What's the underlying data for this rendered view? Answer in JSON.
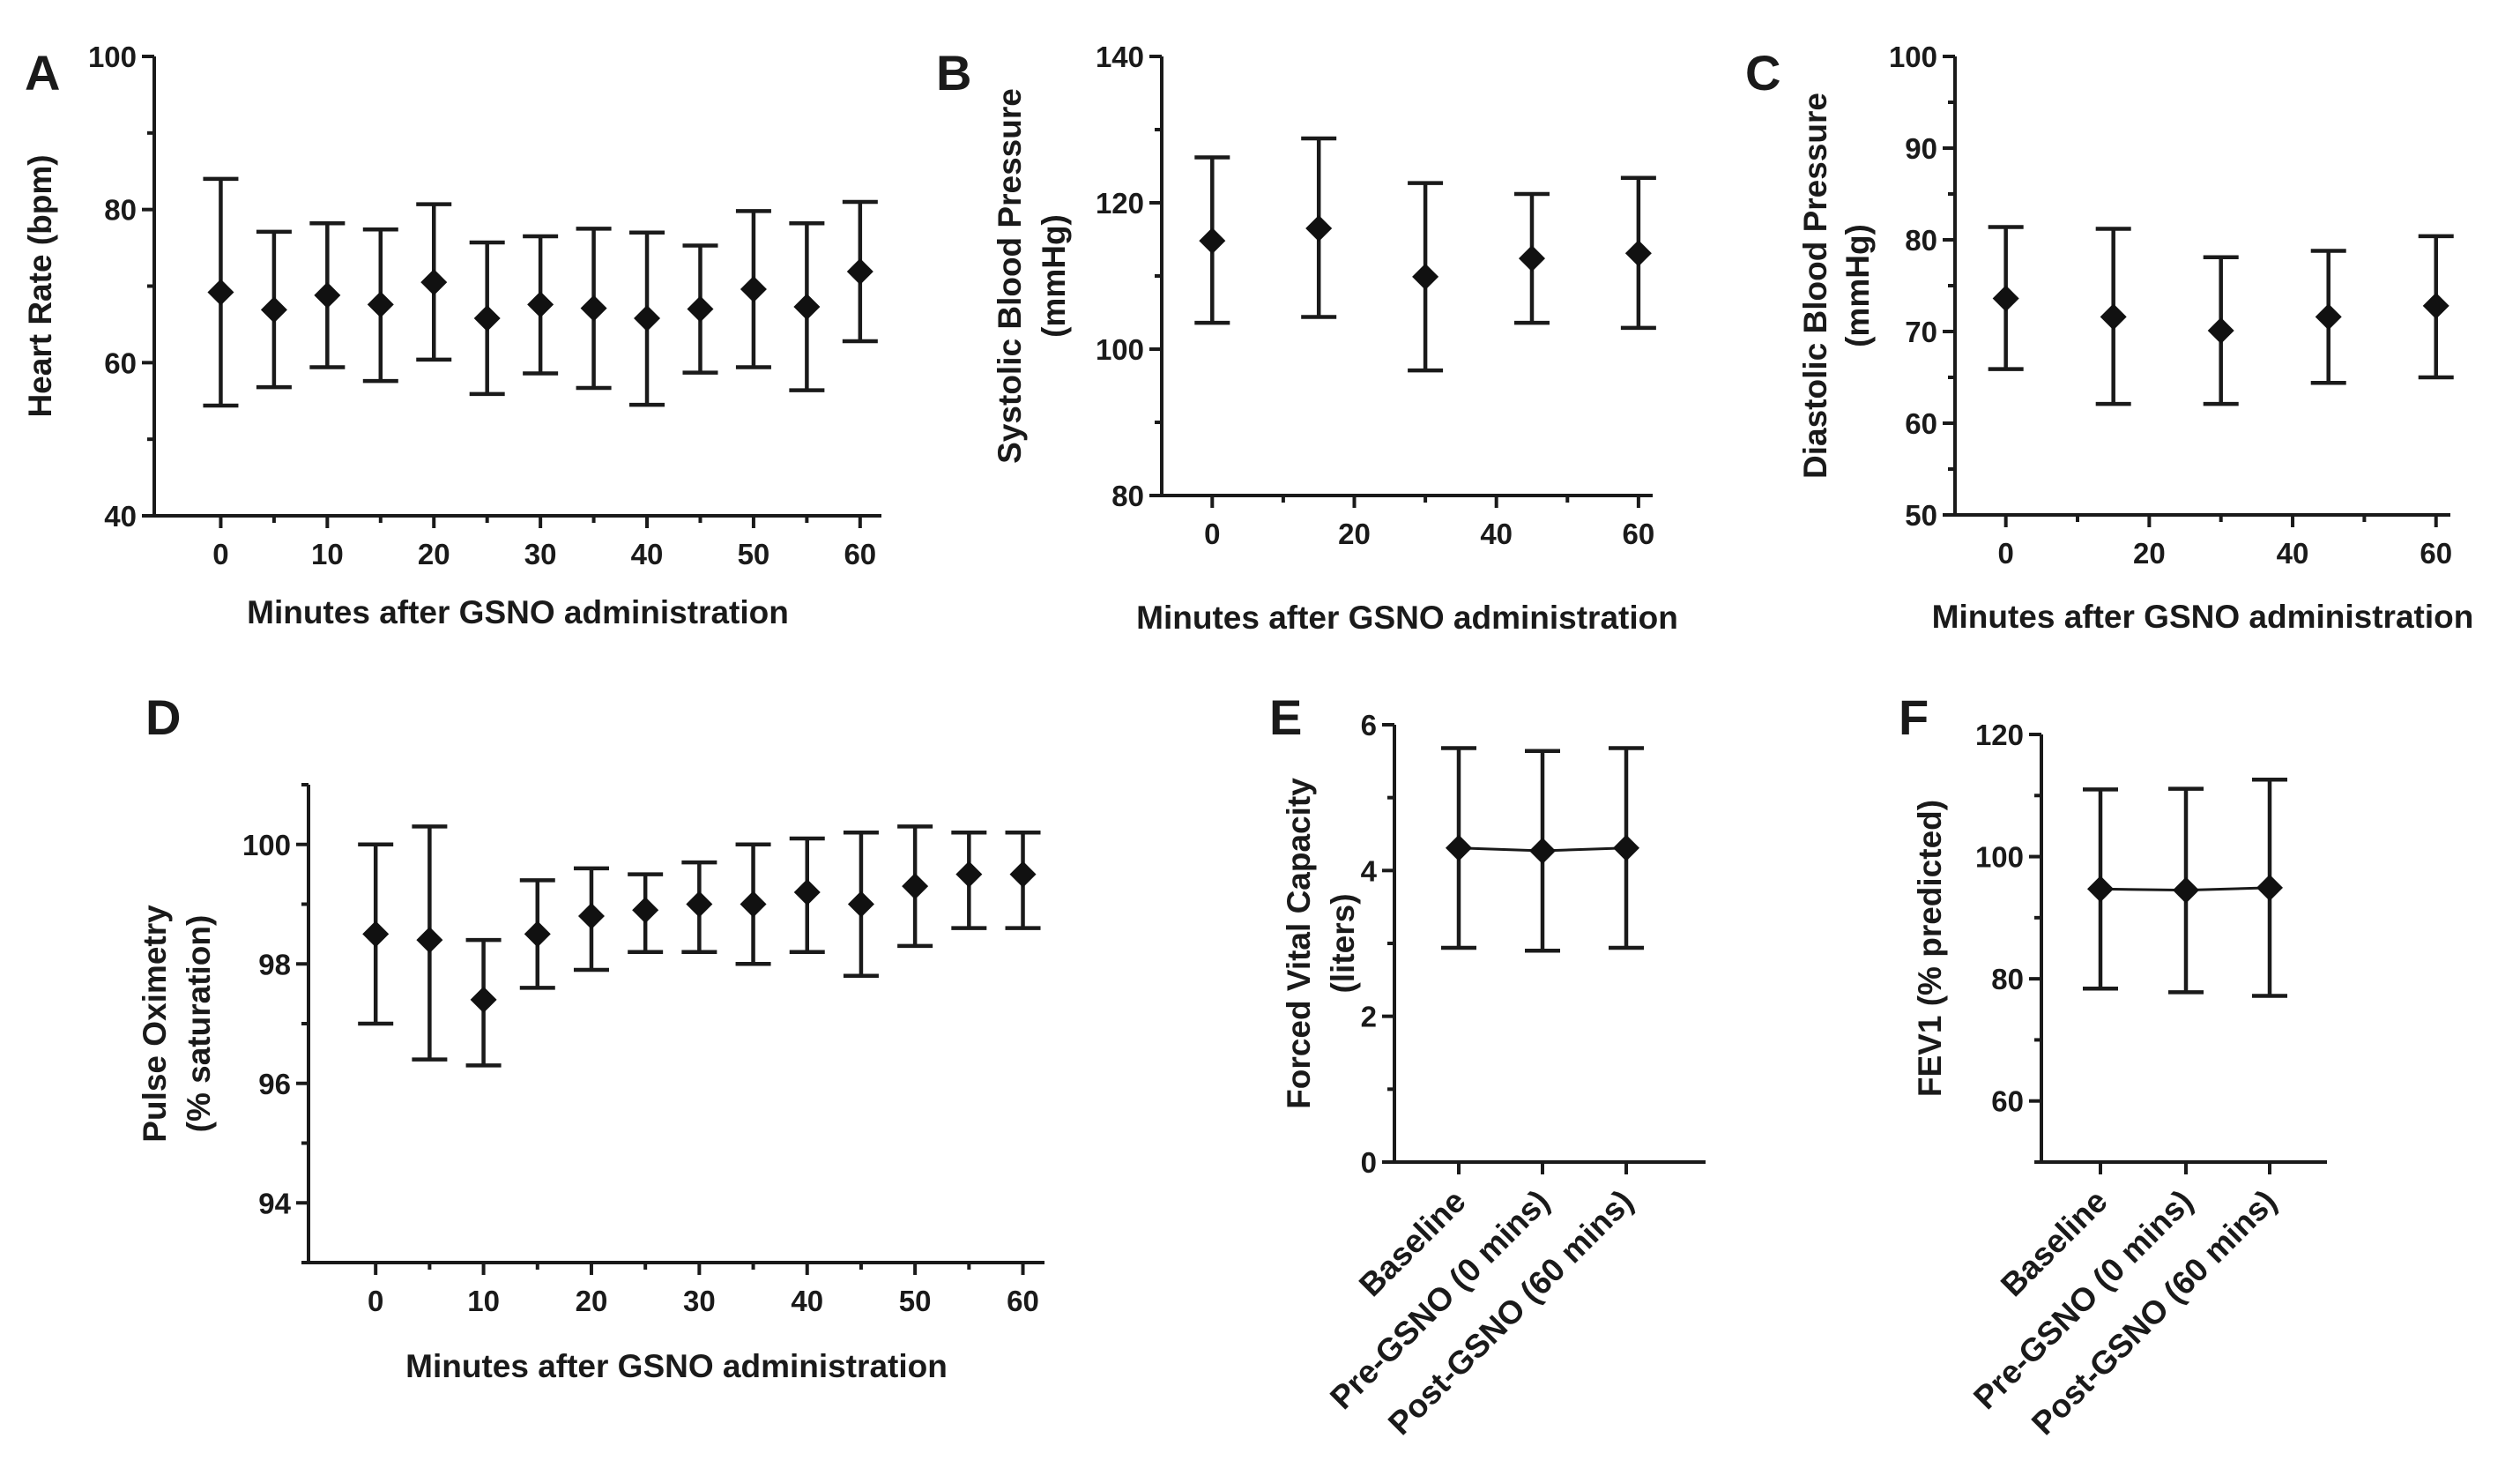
{
  "figure": {
    "panels": [
      "A",
      "B",
      "C",
      "D",
      "E",
      "F"
    ]
  },
  "chart_data": [
    {
      "id": "A",
      "type": "scatter",
      "error_bars": true,
      "xlabel": "Minutes after GSNO administration",
      "ylabel": [
        "Heart Rate (bpm)"
      ],
      "ylim": [
        40,
        100
      ],
      "yticks": [
        40,
        60,
        80,
        100
      ],
      "xlim": [
        -5,
        62
      ],
      "xticks": [
        0,
        10,
        20,
        30,
        40,
        50,
        60
      ],
      "x": [
        0,
        5,
        10,
        15,
        20,
        25,
        30,
        35,
        40,
        45,
        50,
        55,
        60
      ],
      "values": [
        69.2,
        66.9,
        68.8,
        67.6,
        70.5,
        65.8,
        67.6,
        67.1,
        65.8,
        67.0,
        69.6,
        67.3,
        71.9
      ],
      "err_upper": [
        84.0,
        77.1,
        78.2,
        77.4,
        80.7,
        75.7,
        76.5,
        77.5,
        77.0,
        75.3,
        79.8,
        78.2,
        81.0
      ],
      "err_lower": [
        54.4,
        56.8,
        59.4,
        57.6,
        60.4,
        55.9,
        58.6,
        56.7,
        54.5,
        58.7,
        59.4,
        56.4,
        62.8
      ]
    },
    {
      "id": "B",
      "type": "scatter",
      "error_bars": true,
      "xlabel": "Minutes after GSNO administration",
      "ylabel": [
        "Systolic Blood Pressure",
        "(mmHg)"
      ],
      "ylim": [
        80,
        140
      ],
      "yticks": [
        80,
        100,
        120,
        140
      ],
      "xlim": [
        -5,
        62
      ],
      "xticks": [
        0,
        20,
        40,
        60
      ],
      "x": [
        0,
        15,
        30,
        45,
        60
      ],
      "values": [
        114.8,
        116.5,
        109.9,
        112.4,
        113.1
      ],
      "err_upper": [
        126.2,
        128.8,
        122.7,
        121.2,
        123.4
      ],
      "err_lower": [
        103.6,
        104.4,
        97.1,
        103.6,
        102.9
      ]
    },
    {
      "id": "C",
      "type": "scatter",
      "error_bars": true,
      "xlabel": "Minutes after GSNO administration",
      "ylabel": [
        "Diastolic Blood Pressure",
        "(mmHg)"
      ],
      "ylim": [
        50,
        100
      ],
      "yticks": [
        50,
        60,
        70,
        80,
        90,
        100
      ],
      "xlim": [
        -5,
        62
      ],
      "xticks": [
        0,
        20,
        40,
        60
      ],
      "x": [
        0,
        15,
        30,
        45,
        60
      ],
      "values": [
        73.6,
        71.6,
        70.1,
        71.6,
        72.8
      ],
      "err_upper": [
        81.4,
        81.2,
        78.1,
        78.8,
        80.4
      ],
      "err_lower": [
        65.9,
        62.1,
        62.1,
        64.4,
        65.0
      ]
    },
    {
      "id": "D",
      "type": "scatter",
      "error_bars": true,
      "xlabel": "Minutes after GSNO administration",
      "ylabel": [
        "Pulse Oximetry",
        "(% saturation)"
      ],
      "ylim": [
        93,
        101
      ],
      "yticks": [
        94,
        96,
        98,
        100
      ],
      "xlim": [
        -5,
        62
      ],
      "xticks": [
        0,
        10,
        20,
        30,
        40,
        50,
        60
      ],
      "x": [
        0,
        5,
        10,
        15,
        20,
        25,
        30,
        35,
        40,
        45,
        50,
        55,
        60
      ],
      "values": [
        98.5,
        98.4,
        97.4,
        98.5,
        98.8,
        98.9,
        99.0,
        99.0,
        99.2,
        99.0,
        99.3,
        99.5,
        99.5
      ],
      "err_upper": [
        100.0,
        100.3,
        98.4,
        99.4,
        99.6,
        99.5,
        99.7,
        100.0,
        100.1,
        100.2,
        100.3,
        100.2,
        100.2
      ],
      "err_lower": [
        97.0,
        96.4,
        96.3,
        97.6,
        97.9,
        98.2,
        98.2,
        98.0,
        98.2,
        97.8,
        98.3,
        98.6,
        98.6
      ]
    },
    {
      "id": "E",
      "type": "line",
      "error_bars": true,
      "ylabel": [
        "Forced Vital Capacity",
        "(liters)"
      ],
      "ylim": [
        0,
        6
      ],
      "yticks": [
        0,
        2,
        4,
        6
      ],
      "categories": [
        "Baseline",
        "Pre-GSNO (0 mins)",
        "Post-GSNO (60 mins)"
      ],
      "values": [
        4.31,
        4.27,
        4.31
      ],
      "err_upper": [
        5.68,
        5.64,
        5.68
      ],
      "err_lower": [
        2.94,
        2.9,
        2.94
      ]
    },
    {
      "id": "F",
      "type": "line",
      "error_bars": true,
      "ylabel": [
        "FEV1 (% predicted)"
      ],
      "ylim": [
        50,
        120
      ],
      "yticks": [
        60,
        80,
        100,
        120
      ],
      "categories": [
        "Baseline",
        "Pre-GSNO (0 mins)",
        "Post-GSNO (60 mins)"
      ],
      "values": [
        94.7,
        94.5,
        94.9
      ],
      "err_upper": [
        111.0,
        111.1,
        112.6
      ],
      "err_lower": [
        78.4,
        77.8,
        77.2
      ]
    }
  ]
}
